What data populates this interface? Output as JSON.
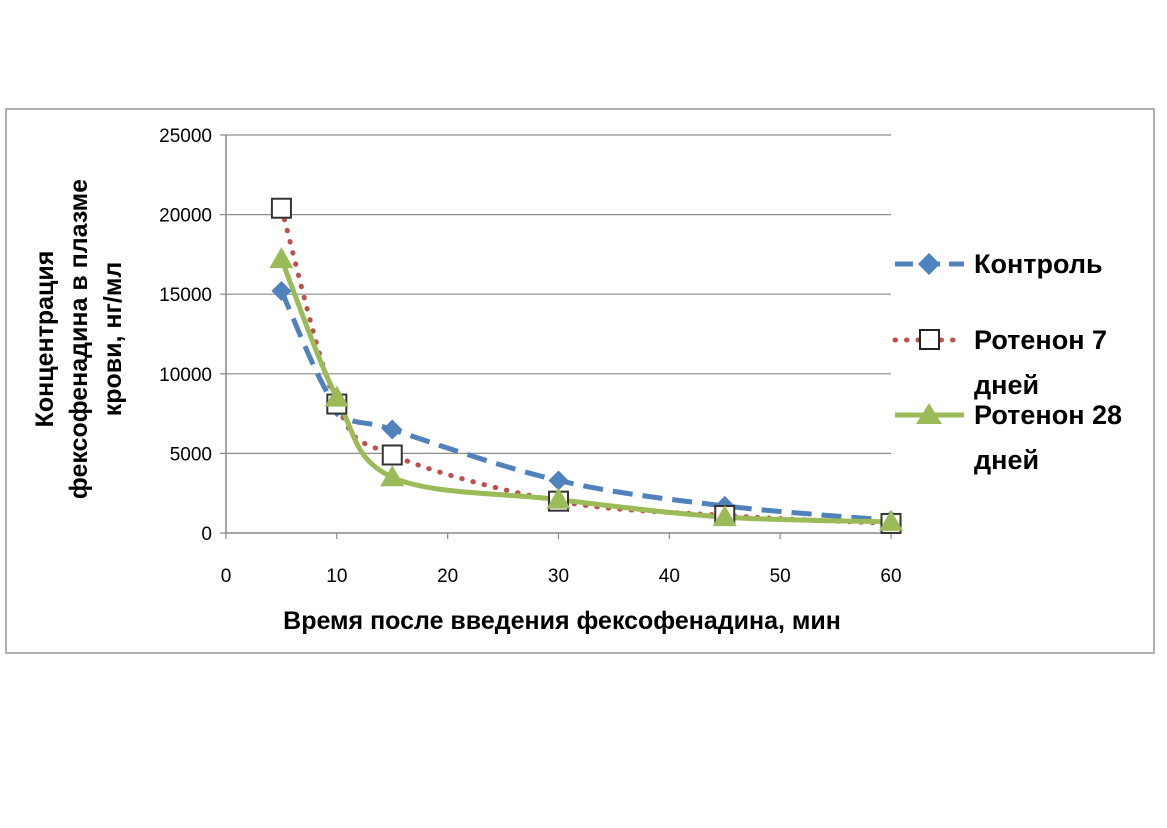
{
  "chart_data": {
    "type": "line",
    "title": "",
    "xlabel": "Время после введения фексофенадина, мин",
    "ylabel_lines": [
      "Концентрация",
      "фексофенадина в плазме",
      "крови, нг/мл"
    ],
    "xlim": [
      0,
      60
    ],
    "ylim": [
      0,
      25000
    ],
    "x_ticks": [
      0,
      10,
      20,
      30,
      40,
      50,
      60
    ],
    "y_ticks": [
      0,
      5000,
      10000,
      15000,
      20000,
      25000
    ],
    "grid": "horizontal",
    "legend_position": "right",
    "x": [
      5,
      10,
      15,
      30,
      45,
      60
    ],
    "series": [
      {
        "name": "Контроль",
        "name_lines": [
          "Контроль"
        ],
        "values": [
          15200,
          7900,
          6500,
          3300,
          1700,
          800
        ],
        "color": "#4F81BD",
        "line_style": "dashed",
        "marker": "diamond"
      },
      {
        "name": "Ротенон 7 дней",
        "name_lines": [
          "Ротенон 7",
          "дней"
        ],
        "values": [
          20400,
          8100,
          4900,
          2000,
          1100,
          600
        ],
        "color": "#C0504D",
        "line_style": "dotted",
        "marker": "open-square"
      },
      {
        "name": "Ротенон 28 дней",
        "name_lines": [
          "Ротенон 28",
          "дней"
        ],
        "values": [
          17200,
          8500,
          3500,
          2100,
          1000,
          700
        ],
        "color": "#9BBB59",
        "line_style": "solid",
        "marker": "triangle"
      }
    ]
  }
}
